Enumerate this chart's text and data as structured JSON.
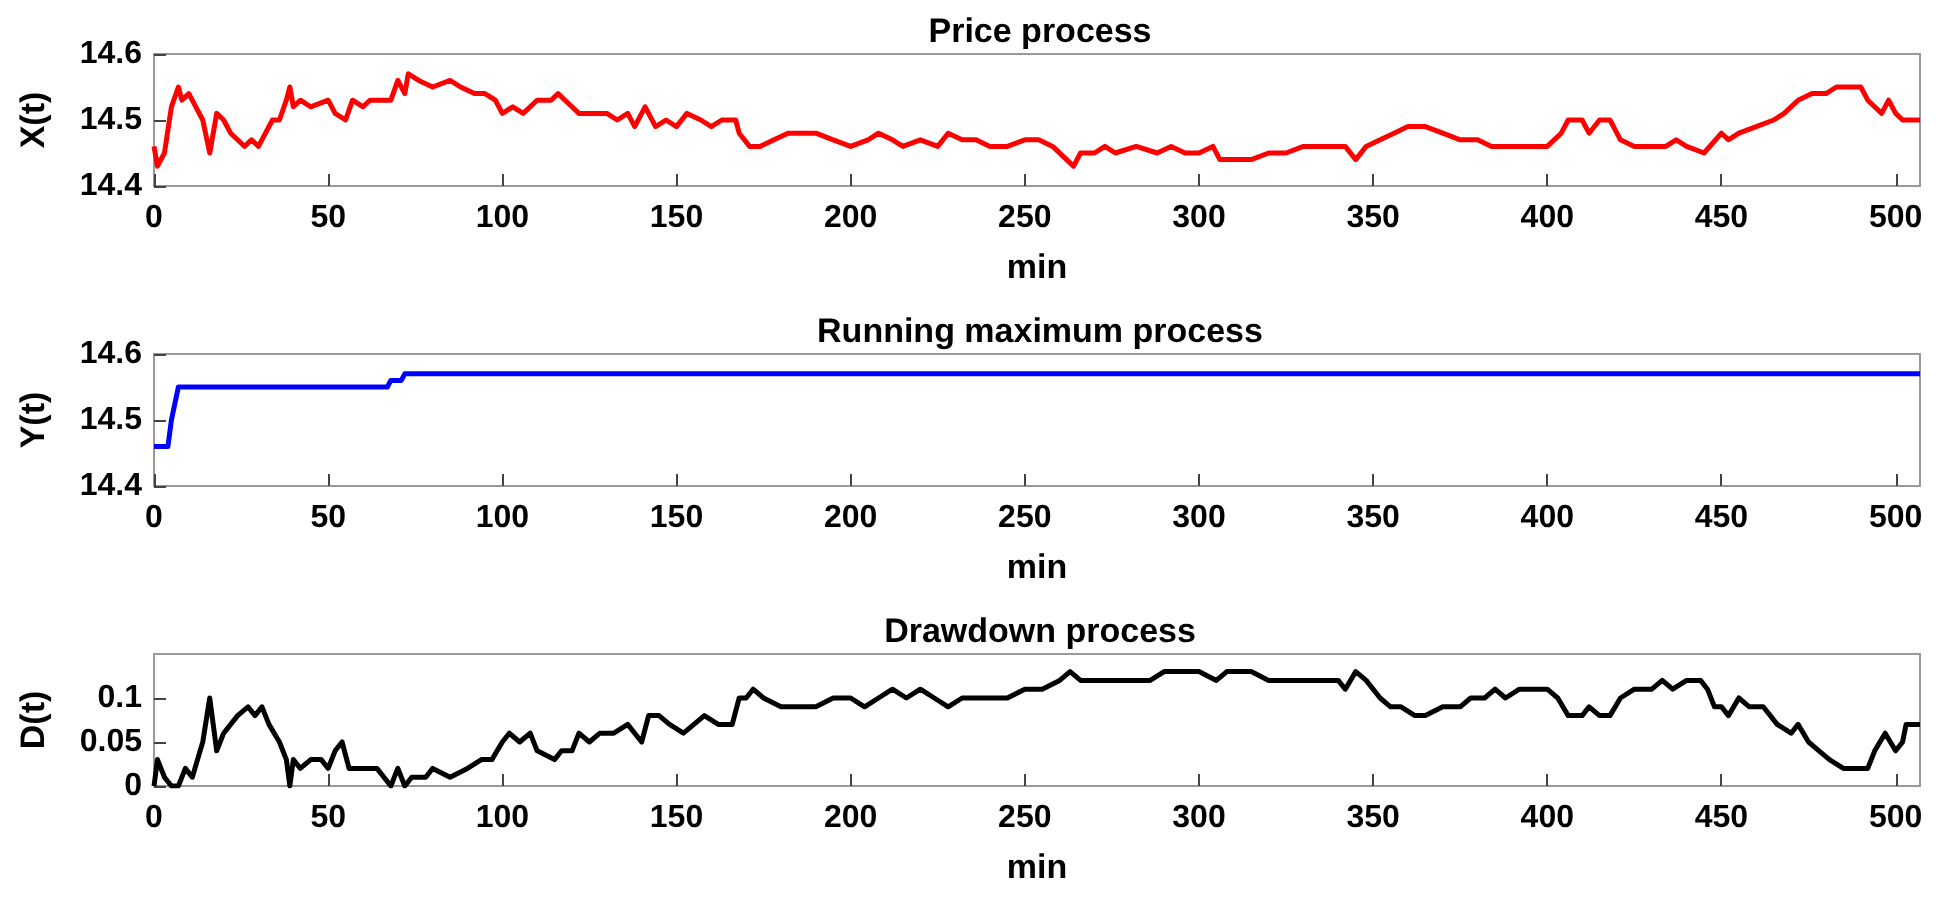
{
  "chart_data": [
    {
      "type": "line",
      "title": "Price process",
      "xlabel": "min",
      "ylabel": "X(t)",
      "xlim": [
        0,
        507
      ],
      "xticks": [
        0,
        50,
        100,
        150,
        200,
        250,
        300,
        350,
        400,
        450,
        500
      ],
      "ylim": [
        14.4,
        14.6
      ],
      "yticks": [
        14.4,
        14.5,
        14.6
      ],
      "grid": false,
      "marker": "none",
      "line_style": "solid",
      "series": [
        {
          "color": "#ff0000",
          "x": [
            0,
            1,
            3,
            5,
            7,
            8,
            10,
            12,
            14,
            16,
            18,
            20,
            22,
            24,
            26,
            28,
            30,
            32,
            34,
            36,
            38,
            39,
            40,
            42,
            45,
            50,
            52,
            55,
            57,
            60,
            62,
            65,
            68,
            70,
            72,
            73,
            76,
            80,
            85,
            88,
            92,
            95,
            98,
            100,
            103,
            106,
            110,
            114,
            116,
            118,
            120,
            122,
            125,
            130,
            133,
            136,
            138,
            141,
            144,
            147,
            150,
            153,
            157,
            160,
            163,
            167,
            168,
            171,
            174,
            178,
            182,
            190,
            195,
            200,
            205,
            208,
            212,
            215,
            220,
            225,
            228,
            232,
            236,
            240,
            245,
            250,
            254,
            258,
            262,
            264,
            266,
            270,
            273,
            276,
            282,
            288,
            292,
            296,
            300,
            304,
            306,
            310,
            313,
            315,
            320,
            325,
            330,
            335,
            338,
            342,
            345,
            348,
            352,
            356,
            360,
            365,
            370,
            375,
            380,
            384,
            388,
            392,
            396,
            400,
            404,
            406,
            410,
            412,
            415,
            418,
            421,
            425,
            430,
            434,
            437,
            440,
            445,
            450,
            452,
            455,
            460,
            465,
            468,
            472,
            476,
            480,
            483,
            490,
            492,
            496,
            498,
            500,
            502,
            507
          ],
          "values": [
            14.46,
            14.43,
            14.45,
            14.52,
            14.55,
            14.53,
            14.54,
            14.52,
            14.5,
            14.45,
            14.51,
            14.5,
            14.48,
            14.47,
            14.46,
            14.47,
            14.46,
            14.48,
            14.5,
            14.5,
            14.53,
            14.55,
            14.52,
            14.53,
            14.52,
            14.53,
            14.51,
            14.5,
            14.53,
            14.52,
            14.53,
            14.53,
            14.53,
            14.56,
            14.54,
            14.57,
            14.56,
            14.55,
            14.56,
            14.55,
            14.54,
            14.54,
            14.53,
            14.51,
            14.52,
            14.51,
            14.53,
            14.53,
            14.54,
            14.53,
            14.52,
            14.51,
            14.51,
            14.51,
            14.5,
            14.51,
            14.49,
            14.52,
            14.49,
            14.5,
            14.49,
            14.51,
            14.5,
            14.49,
            14.5,
            14.5,
            14.48,
            14.46,
            14.46,
            14.47,
            14.48,
            14.48,
            14.47,
            14.46,
            14.47,
            14.48,
            14.47,
            14.46,
            14.47,
            14.46,
            14.48,
            14.47,
            14.47,
            14.46,
            14.46,
            14.47,
            14.47,
            14.46,
            14.44,
            14.43,
            14.45,
            14.45,
            14.46,
            14.45,
            14.46,
            14.45,
            14.46,
            14.45,
            14.45,
            14.46,
            14.44,
            14.44,
            14.44,
            14.44,
            14.45,
            14.45,
            14.46,
            14.46,
            14.46,
            14.46,
            14.44,
            14.46,
            14.47,
            14.48,
            14.49,
            14.49,
            14.48,
            14.47,
            14.47,
            14.46,
            14.46,
            14.46,
            14.46,
            14.46,
            14.48,
            14.5,
            14.5,
            14.48,
            14.5,
            14.5,
            14.47,
            14.46,
            14.46,
            14.46,
            14.47,
            14.46,
            14.45,
            14.48,
            14.47,
            14.48,
            14.49,
            14.5,
            14.51,
            14.53,
            14.54,
            14.54,
            14.55,
            14.55,
            14.53,
            14.51,
            14.53,
            14.51,
            14.5,
            14.5
          ]
        }
      ]
    },
    {
      "type": "line",
      "title": "Running maximum process",
      "xlabel": "min",
      "ylabel": "Y(t)",
      "xlim": [
        0,
        507
      ],
      "xticks": [
        0,
        50,
        100,
        150,
        200,
        250,
        300,
        350,
        400,
        450,
        500
      ],
      "ylim": [
        14.4,
        14.6
      ],
      "yticks": [
        14.4,
        14.5,
        14.6
      ],
      "grid": false,
      "marker": "none",
      "line_style": "solid",
      "series": [
        {
          "color": "#0000ff",
          "x": [
            0,
            4,
            5,
            7,
            67,
            68,
            71,
            72,
            507
          ],
          "values": [
            14.46,
            14.46,
            14.5,
            14.55,
            14.55,
            14.56,
            14.56,
            14.57,
            14.57
          ]
        }
      ]
    },
    {
      "type": "line",
      "title": "Drawdown process",
      "xlabel": "min",
      "ylabel": "D(t)",
      "xlim": [
        0,
        507
      ],
      "xticks": [
        0,
        50,
        100,
        150,
        200,
        250,
        300,
        350,
        400,
        450,
        500
      ],
      "ylim": [
        0,
        0.15
      ],
      "yticks": [
        0,
        0.05,
        0.1
      ],
      "grid": false,
      "marker": "none",
      "line_style": "solid",
      "series": [
        {
          "color": "#000000",
          "x": [
            0,
            1,
            3,
            5,
            7,
            9,
            11,
            14,
            16,
            18,
            20,
            22,
            24,
            27,
            29,
            31,
            33,
            36,
            38,
            39,
            40,
            42,
            45,
            48,
            50,
            52,
            54,
            56,
            60,
            64,
            68,
            70,
            72,
            74,
            78,
            80,
            85,
            90,
            94,
            97,
            100,
            102,
            105,
            108,
            110,
            115,
            117,
            120,
            122,
            125,
            128,
            132,
            136,
            138,
            140,
            142,
            145,
            148,
            152,
            155,
            158,
            162,
            166,
            168,
            170,
            172,
            175,
            180,
            185,
            190,
            195,
            200,
            204,
            208,
            212,
            216,
            220,
            224,
            228,
            232,
            236,
            240,
            245,
            250,
            255,
            260,
            263,
            266,
            270,
            275,
            280,
            286,
            290,
            296,
            300,
            305,
            308,
            312,
            315,
            320,
            325,
            330,
            335,
            340,
            342,
            345,
            348,
            352,
            355,
            358,
            362,
            365,
            370,
            375,
            378,
            382,
            385,
            388,
            392,
            395,
            400,
            403,
            406,
            410,
            412,
            415,
            418,
            421,
            425,
            430,
            433,
            436,
            440,
            444,
            446,
            448,
            450,
            452,
            455,
            458,
            462,
            466,
            470,
            472,
            475,
            478,
            481,
            485,
            488,
            492,
            494,
            497,
            500,
            502,
            503,
            507
          ],
          "values": [
            0,
            0.03,
            0.01,
            0,
            0,
            0.02,
            0.01,
            0.05,
            0.1,
            0.04,
            0.06,
            0.07,
            0.08,
            0.09,
            0.08,
            0.09,
            0.07,
            0.05,
            0.03,
            0,
            0.03,
            0.02,
            0.03,
            0.03,
            0.02,
            0.04,
            0.05,
            0.02,
            0.02,
            0.02,
            0,
            0.02,
            0,
            0.01,
            0.01,
            0.02,
            0.01,
            0.02,
            0.03,
            0.03,
            0.05,
            0.06,
            0.05,
            0.06,
            0.04,
            0.03,
            0.04,
            0.04,
            0.06,
            0.05,
            0.06,
            0.06,
            0.07,
            0.06,
            0.05,
            0.08,
            0.08,
            0.07,
            0.06,
            0.07,
            0.08,
            0.07,
            0.07,
            0.1,
            0.1,
            0.11,
            0.1,
            0.09,
            0.09,
            0.09,
            0.1,
            0.1,
            0.09,
            0.1,
            0.11,
            0.1,
            0.11,
            0.1,
            0.09,
            0.1,
            0.1,
            0.1,
            0.1,
            0.11,
            0.11,
            0.12,
            0.13,
            0.12,
            0.12,
            0.12,
            0.12,
            0.12,
            0.13,
            0.13,
            0.13,
            0.12,
            0.13,
            0.13,
            0.13,
            0.12,
            0.12,
            0.12,
            0.12,
            0.12,
            0.11,
            0.13,
            0.12,
            0.1,
            0.09,
            0.09,
            0.08,
            0.08,
            0.09,
            0.09,
            0.1,
            0.1,
            0.11,
            0.1,
            0.11,
            0.11,
            0.11,
            0.1,
            0.08,
            0.08,
            0.09,
            0.08,
            0.08,
            0.1,
            0.11,
            0.11,
            0.12,
            0.11,
            0.12,
            0.12,
            0.11,
            0.09,
            0.09,
            0.08,
            0.1,
            0.09,
            0.09,
            0.07,
            0.06,
            0.07,
            0.05,
            0.04,
            0.03,
            0.02,
            0.02,
            0.02,
            0.04,
            0.06,
            0.04,
            0.05,
            0.07,
            0.07
          ]
        }
      ]
    }
  ]
}
